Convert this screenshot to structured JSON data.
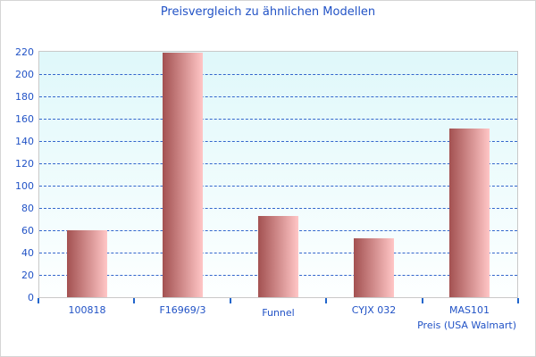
{
  "chart_data": {
    "type": "bar",
    "title": "Preisvergleich zu ähnlichen Modellen",
    "categories": [
      "100818",
      "F16969/3",
      "Funnel",
      "CYJX 032",
      "MAS101"
    ],
    "values": [
      60,
      219,
      73,
      53,
      151
    ],
    "xlabel": "Preis (USA Walmart)",
    "ylabel": "",
    "ylim": [
      0,
      220
    ],
    "yticks": [
      0,
      20,
      40,
      60,
      80,
      100,
      120,
      140,
      160,
      180,
      200,
      220
    ],
    "grid": "horizontal-dashed",
    "legend": "none",
    "colors": {
      "text": "#2253c6",
      "grid_line": "#3366cc",
      "tick_mark": "#2266cc",
      "plot_border": "#c9c9c9",
      "outer_border": "#d5d5d5",
      "plot_bg_top": "#dff8fa",
      "plot_bg_bottom": "#fdffff",
      "bar_dark": "#a35151",
      "bar_light": "#ffc6c6"
    }
  }
}
